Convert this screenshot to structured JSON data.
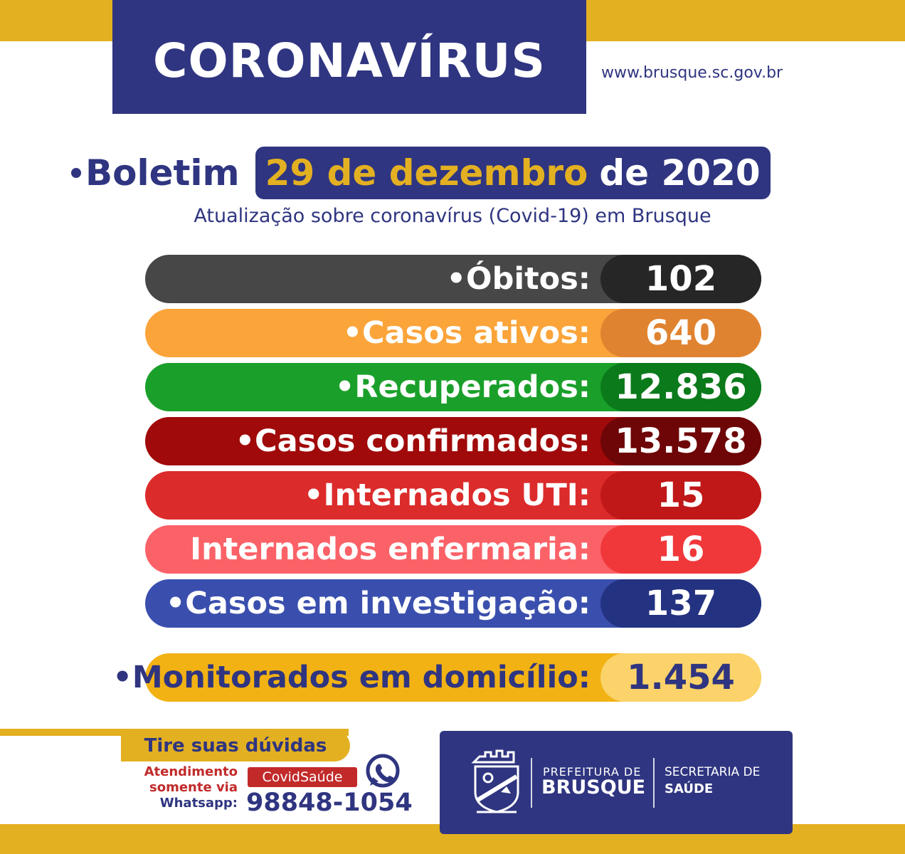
{
  "header": {
    "title": "CORONAVÍRUS",
    "website": "www.brusque.sc.gov.br"
  },
  "bulletin": {
    "label": "Boletim",
    "date_highlight": "29 de dezembro",
    "date_rest": "de 2020",
    "subtitle": "Atualização sobre coronavírus (Covid-19) em Brusque"
  },
  "stats": [
    {
      "label": "•Óbitos:",
      "value": "102",
      "bar_color": "#474747",
      "value_color": "#262626"
    },
    {
      "label": "•Casos ativos:",
      "value": "640",
      "bar_color": "#fba43a",
      "value_color": "#e08330"
    },
    {
      "label": "•Recuperados:",
      "value": "12.836",
      "bar_color": "#1aa02a",
      "value_color": "#0b7a1b"
    },
    {
      "label": "•Casos confirmados:",
      "value": "13.578",
      "bar_color": "#a10a0a",
      "value_color": "#6e0507"
    },
    {
      "label": "•Internados UTI:",
      "value": "15",
      "bar_color": "#dc2b2b",
      "value_color": "#c01818"
    },
    {
      "label": "Internados enfermaria:",
      "value": "16",
      "bar_color": "#fb6268",
      "value_color": "#f0383a"
    },
    {
      "label": "•Casos em investigação:",
      "value": "137",
      "bar_color": "#3a4fad",
      "value_color": "#233281"
    }
  ],
  "monitored": {
    "label": "•Monitorados em domicílio:",
    "value": "1.454",
    "bar_color": "#f2b214",
    "value_color": "#fbd36a",
    "text_color": "#2f3580"
  },
  "contact": {
    "heading": "Tire suas dúvidas",
    "note_line1": "Atendimento",
    "note_line2": "somente via",
    "note_line3": "Whatsapp:",
    "badge": "CovidSaúde",
    "phone": "98848-1054",
    "icon": "whatsapp-icon"
  },
  "logo": {
    "prefeitura_top": "PREFEITURA DE",
    "prefeitura_main": "BRUSQUE",
    "secretaria_top": "SECRETARIA DE",
    "secretaria_main": "SAÚDE",
    "crest_icon": "city-crest-icon"
  },
  "colors": {
    "navy": "#2f3580",
    "gold": "#e3b022",
    "red": "#c22a2a"
  }
}
